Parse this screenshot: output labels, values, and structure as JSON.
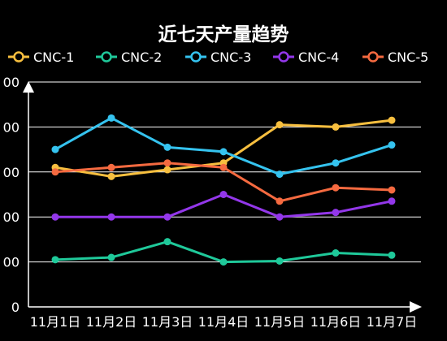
{
  "chart_data": {
    "type": "line",
    "title": "近七天产量趋势",
    "xlabel": "",
    "ylabel": "",
    "categories": [
      "11月1日",
      "11月2日",
      "11月3日",
      "11月4日",
      "11月5日",
      "11月6日",
      "11月7日"
    ],
    "y_tick_labels": [
      "0",
      "00",
      "00",
      "00",
      "00",
      "00"
    ],
    "ylim": [
      0,
      5
    ],
    "grid": true,
    "legend_position": "top",
    "series": [
      {
        "name": "CNC-1",
        "color": "#f7bf3f",
        "values": [
          3.1,
          2.9,
          3.05,
          3.2,
          4.05,
          4.0,
          4.15
        ]
      },
      {
        "name": "CNC-2",
        "color": "#1fc99a",
        "values": [
          1.05,
          1.1,
          1.45,
          1.0,
          1.02,
          1.2,
          1.15
        ]
      },
      {
        "name": "CNC-3",
        "color": "#35c3ef",
        "values": [
          3.5,
          4.2,
          3.55,
          3.45,
          2.95,
          3.2,
          3.6
        ]
      },
      {
        "name": "CNC-4",
        "color": "#9337ea",
        "values": [
          2.0,
          2.0,
          2.0,
          2.5,
          2.0,
          2.1,
          2.35
        ]
      },
      {
        "name": "CNC-5",
        "color": "#f56a40",
        "values": [
          3.0,
          3.1,
          3.2,
          3.1,
          2.35,
          2.65,
          2.6
        ]
      }
    ]
  }
}
